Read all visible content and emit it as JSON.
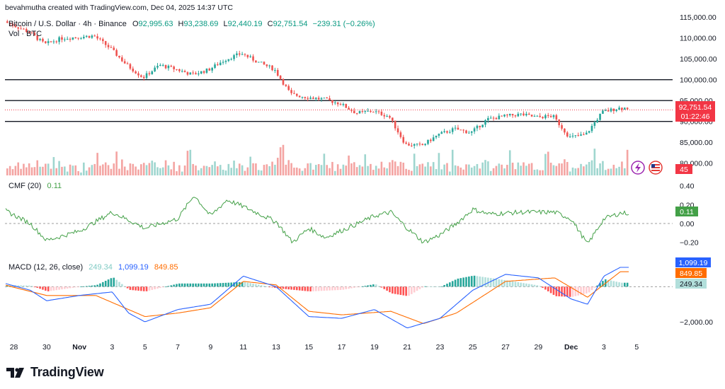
{
  "header": {
    "attribution": "bevahmutha created with TradingView.com, Dec 04, 2025 14:37 UTC"
  },
  "price_pane": {
    "symbol_line": "Bitcoin / U.S. Dollar · 4h · Binance",
    "open_label": "O",
    "open": "92,995.63",
    "high_label": "H",
    "high": "93,238.69",
    "low_label": "L",
    "low": "92,440.19",
    "close_label": "C",
    "close": "92,751.54",
    "change": "−239.31 (−0.26%)",
    "volume_label": "Vol · BTC",
    "last_price_tag": "92,751.54",
    "countdown_tag": "01:22:46",
    "volume_tag": "45"
  },
  "cmf_pane": {
    "title": "CMF (20)",
    "value": "0.11"
  },
  "macd_pane": {
    "title": "MACD (12, 26, close)",
    "histogram_value": "249.34",
    "macd_value": "1,099.19",
    "signal_value": "849.85"
  },
  "branding": {
    "logo_text": "TradingView"
  },
  "colors": {
    "up": "#26a69a",
    "down": "#ef5350",
    "vol_up": "#9fd6cf",
    "vol_down": "#f4a4a2",
    "cmf_line": "#43a047",
    "macd_line": "#2962ff",
    "signal_line": "#ff6d00",
    "hist_up_strong": "#26a69a",
    "hist_up_weak": "#b2dfdb",
    "hist_down_strong": "#ff5252",
    "hist_down_weak": "#ffcdd2",
    "level_line": "#131722"
  },
  "chart_data": [
    {
      "type": "candlestick",
      "title": "Bitcoin / U.S. Dollar · 4h · Binance",
      "y_tick_labels": [
        "115,000.00",
        "110,000.00",
        "105,000.00",
        "100,000.00",
        "95,000.00",
        "90,000.00",
        "85,000.00",
        "80,000.00"
      ],
      "y_ticks": [
        115000,
        110000,
        105000,
        100000,
        95000,
        90000,
        85000,
        80000
      ],
      "ylim": [
        77400,
        115700
      ],
      "x_tick_labels": [
        "28",
        "30",
        "Nov",
        "3",
        "5",
        "7",
        "9",
        "11",
        "13",
        "15",
        "17",
        "19",
        "21",
        "23",
        "25",
        "27",
        "29",
        "Dec",
        "3",
        "5"
      ],
      "horizontal_levels": [
        100000,
        95000,
        90000
      ],
      "last_price": 92751.54,
      "series": [
        {
          "name": "price",
          "anchors": [
            {
              "date": "2025-10-27",
              "price": 114800
            },
            {
              "date": "2025-10-29",
              "price": 111500
            },
            {
              "date": "2025-10-30",
              "price": 108500
            },
            {
              "date": "2025-10-31",
              "price": 109900
            },
            {
              "date": "2025-11-02",
              "price": 110500
            },
            {
              "date": "2025-11-03",
              "price": 107500
            },
            {
              "date": "2025-11-04",
              "price": 103500
            },
            {
              "date": "2025-11-05",
              "price": 100500
            },
            {
              "date": "2025-11-06",
              "price": 103500
            },
            {
              "date": "2025-11-07",
              "price": 102500
            },
            {
              "date": "2025-11-08",
              "price": 101200
            },
            {
              "date": "2025-11-09",
              "price": 102400
            },
            {
              "date": "2025-11-10",
              "price": 104800
            },
            {
              "date": "2025-11-11",
              "price": 106300
            },
            {
              "date": "2025-11-12",
              "price": 104200
            },
            {
              "date": "2025-11-13",
              "price": 102500
            },
            {
              "date": "2025-11-14",
              "price": 96500
            },
            {
              "date": "2025-11-15",
              "price": 95800
            },
            {
              "date": "2025-11-16",
              "price": 95300
            },
            {
              "date": "2025-11-17",
              "price": 94300
            },
            {
              "date": "2025-11-18",
              "price": 92000
            },
            {
              "date": "2025-11-19",
              "price": 92500
            },
            {
              "date": "2025-11-20",
              "price": 91200
            },
            {
              "date": "2025-11-21",
              "price": 84500
            },
            {
              "date": "2025-11-22",
              "price": 84200
            },
            {
              "date": "2025-11-23",
              "price": 86800
            },
            {
              "date": "2025-11-24",
              "price": 88200
            },
            {
              "date": "2025-11-25",
              "price": 87300
            },
            {
              "date": "2025-11-26",
              "price": 90500
            },
            {
              "date": "2025-11-27",
              "price": 91200
            },
            {
              "date": "2025-11-28",
              "price": 91700
            },
            {
              "date": "2025-11-29",
              "price": 91000
            },
            {
              "date": "2025-11-30",
              "price": 91300
            },
            {
              "date": "2025-12-01",
              "price": 86200
            },
            {
              "date": "2025-12-02",
              "price": 86800
            },
            {
              "date": "2025-12-03",
              "price": 92200
            },
            {
              "date": "2025-12-04",
              "price": 93200
            }
          ]
        }
      ]
    },
    {
      "type": "bar",
      "title": "Vol · BTC",
      "last_value": 45
    },
    {
      "type": "line",
      "title": "CMF (20)",
      "y_tick_labels": [
        "0.40",
        "0.20",
        "0.00",
        "−0.20"
      ],
      "y_ticks": [
        0.4,
        0.2,
        0.0,
        -0.2
      ],
      "ylim": [
        -0.3,
        0.45
      ],
      "series": [
        {
          "name": "CMF",
          "anchors": [
            {
              "date": "2025-10-27",
              "value": 0.18
            },
            {
              "date": "2025-10-29",
              "value": 0.0
            },
            {
              "date": "2025-10-30",
              "value": -0.18
            },
            {
              "date": "2025-11-01",
              "value": -0.08
            },
            {
              "date": "2025-11-03",
              "value": 0.12
            },
            {
              "date": "2025-11-05",
              "value": -0.05
            },
            {
              "date": "2025-11-07",
              "value": 0.05
            },
            {
              "date": "2025-11-08",
              "value": 0.3
            },
            {
              "date": "2025-11-09",
              "value": 0.08
            },
            {
              "date": "2025-11-10",
              "value": 0.25
            },
            {
              "date": "2025-11-11",
              "value": 0.18
            },
            {
              "date": "2025-11-13",
              "value": 0.02
            },
            {
              "date": "2025-11-14",
              "value": -0.2
            },
            {
              "date": "2025-11-15",
              "value": -0.05
            },
            {
              "date": "2025-11-16",
              "value": -0.15
            },
            {
              "date": "2025-11-18",
              "value": 0.0
            },
            {
              "date": "2025-11-19",
              "value": 0.08
            },
            {
              "date": "2025-11-20",
              "value": 0.12
            },
            {
              "date": "2025-11-21",
              "value": -0.05
            },
            {
              "date": "2025-11-22",
              "value": -0.2
            },
            {
              "date": "2025-11-23",
              "value": -0.12
            },
            {
              "date": "2025-11-24",
              "value": 0.0
            },
            {
              "date": "2025-11-25",
              "value": 0.15
            },
            {
              "date": "2025-11-26",
              "value": 0.1
            },
            {
              "date": "2025-11-28",
              "value": 0.12
            },
            {
              "date": "2025-11-30",
              "value": 0.12
            },
            {
              "date": "2025-12-01",
              "value": 0.05
            },
            {
              "date": "2025-12-02",
              "value": -0.22
            },
            {
              "date": "2025-12-03",
              "value": 0.05
            },
            {
              "date": "2025-12-04",
              "value": 0.11
            }
          ]
        }
      ]
    },
    {
      "type": "line",
      "title": "MACD (12, 26, close)",
      "y_tick_labels": [
        "−2,000.00"
      ],
      "y_ticks": [
        -2000
      ],
      "ylim": [
        -2600,
        1500
      ],
      "series": [
        {
          "name": "MACD",
          "anchors": [
            {
              "date": "2025-10-27",
              "value": 300
            },
            {
              "date": "2025-10-29",
              "value": -200
            },
            {
              "date": "2025-10-30",
              "value": -800
            },
            {
              "date": "2025-11-01",
              "value": -500
            },
            {
              "date": "2025-11-03",
              "value": -300
            },
            {
              "date": "2025-11-04",
              "value": -1500
            },
            {
              "date": "2025-11-05",
              "value": -2000
            },
            {
              "date": "2025-11-07",
              "value": -1300
            },
            {
              "date": "2025-11-09",
              "value": -1000
            },
            {
              "date": "2025-11-11",
              "value": 600
            },
            {
              "date": "2025-11-13",
              "value": 0
            },
            {
              "date": "2025-11-15",
              "value": -1700
            },
            {
              "date": "2025-11-17",
              "value": -1800
            },
            {
              "date": "2025-11-19",
              "value": -1300
            },
            {
              "date": "2025-11-21",
              "value": -2350
            },
            {
              "date": "2025-11-23",
              "value": -1800
            },
            {
              "date": "2025-11-25",
              "value": -200
            },
            {
              "date": "2025-11-27",
              "value": 700
            },
            {
              "date": "2025-11-29",
              "value": 500
            },
            {
              "date": "2025-12-01",
              "value": -700
            },
            {
              "date": "2025-12-02",
              "value": -1000
            },
            {
              "date": "2025-12-03",
              "value": 600
            },
            {
              "date": "2025-12-04",
              "value": 1099
            }
          ]
        },
        {
          "name": "Signal",
          "anchors": [
            {
              "date": "2025-10-27",
              "value": 200
            },
            {
              "date": "2025-10-30",
              "value": -500
            },
            {
              "date": "2025-11-02",
              "value": -500
            },
            {
              "date": "2025-11-05",
              "value": -1700
            },
            {
              "date": "2025-11-07",
              "value": -1500
            },
            {
              "date": "2025-11-09",
              "value": -1200
            },
            {
              "date": "2025-11-11",
              "value": 300
            },
            {
              "date": "2025-11-13",
              "value": 100
            },
            {
              "date": "2025-11-15",
              "value": -1400
            },
            {
              "date": "2025-11-17",
              "value": -1600
            },
            {
              "date": "2025-11-20",
              "value": -1400
            },
            {
              "date": "2025-11-22",
              "value": -2100
            },
            {
              "date": "2025-11-24",
              "value": -1500
            },
            {
              "date": "2025-11-27",
              "value": 300
            },
            {
              "date": "2025-11-30",
              "value": 500
            },
            {
              "date": "2025-12-02",
              "value": -600
            },
            {
              "date": "2025-12-04",
              "value": 850
            }
          ]
        }
      ]
    }
  ]
}
